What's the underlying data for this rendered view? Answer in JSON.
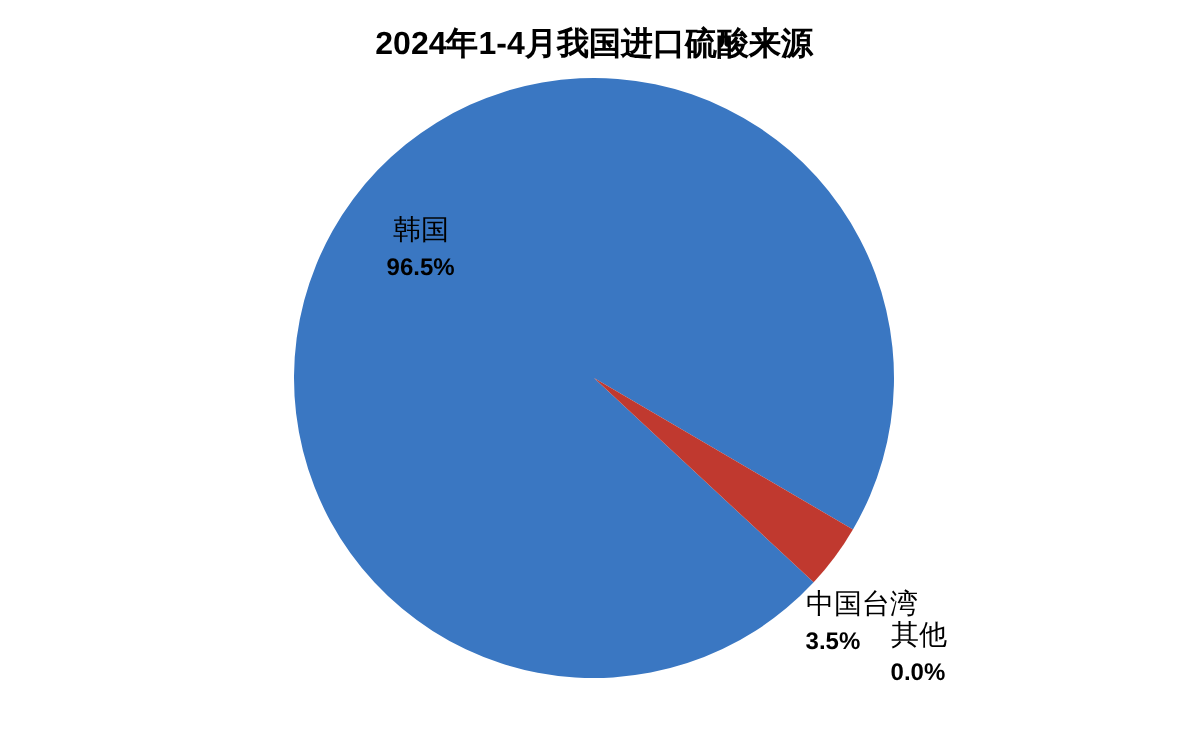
{
  "chart_data": {
    "type": "pie",
    "title": "2024年1-4月我国进口硫酸来源",
    "categories": [
      "韩国",
      "中国台湾",
      "其他"
    ],
    "values": [
      96.5,
      3.5,
      0.0
    ],
    "colors": [
      "#3a77c2",
      "#c0392f",
      "#8fae4e"
    ],
    "value_labels": [
      "96.5%",
      "3.5%",
      "0.0%"
    ],
    "legend": false
  }
}
